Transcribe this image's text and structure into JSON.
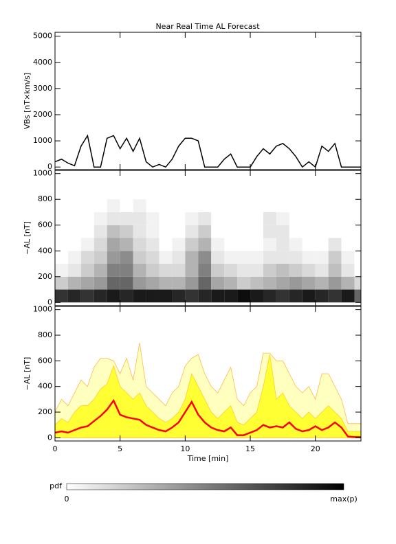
{
  "chart_data": [
    {
      "type": "line",
      "title": "Near Real Time AL Forecast",
      "y_label": "VBs [nT×km/s]",
      "color": "#000000",
      "show_xtick_labels": false,
      "x": [
        0,
        0.5,
        1,
        1.5,
        2,
        2.5,
        3,
        3.5,
        4,
        4.5,
        5,
        5.5,
        6,
        6.5,
        7,
        7.5,
        8,
        8.5,
        9,
        9.5,
        10,
        10.5,
        11,
        11.5,
        12,
        12.5,
        13,
        13.5,
        14,
        14.5,
        15,
        15.5,
        16,
        16.5,
        17,
        17.5,
        18,
        18.5,
        19,
        19.5,
        20,
        20.5,
        21,
        21.5,
        22,
        22.5,
        23,
        23.5
      ],
      "values": [
        200,
        300,
        150,
        50,
        800,
        1200,
        0,
        0,
        1100,
        1200,
        700,
        1100,
        600,
        1100,
        200,
        0,
        100,
        0,
        300,
        800,
        1100,
        1100,
        1000,
        0,
        0,
        0,
        300,
        500,
        0,
        0,
        0,
        400,
        700,
        500,
        800,
        900,
        700,
        400,
        0,
        200,
        0,
        800,
        600,
        900,
        0,
        0,
        0,
        0
      ],
      "xlim": [
        0,
        23.5
      ],
      "xticks": [
        0,
        5,
        10,
        15,
        20
      ],
      "ylim": [
        -100,
        5150
      ],
      "yticks": [
        0,
        1000,
        2000,
        3000,
        4000,
        5000
      ]
    },
    {
      "type": "heatmap",
      "y_label": "−AL [nT]",
      "colors": [
        "#ffffff",
        "#000000"
      ],
      "show_xtick_labels": false,
      "xbins": [
        0,
        1,
        2,
        3,
        4,
        5,
        6,
        7,
        8,
        9,
        10,
        11,
        12,
        13,
        14,
        15,
        16,
        17,
        18,
        19,
        20,
        21,
        22,
        23,
        24
      ],
      "ybins": [
        0,
        100,
        200,
        300,
        400,
        500,
        600,
        700,
        800
      ],
      "z": [
        [
          0.8,
          0.85,
          0.8,
          0.85,
          0.9,
          0.85,
          0.9,
          0.9,
          0.9,
          0.85,
          0.8,
          0.85,
          0.9,
          0.9,
          0.95,
          0.9,
          0.85,
          0.8,
          0.85,
          0.9,
          0.85,
          0.8,
          0.9,
          0.6
        ],
        [
          0.2,
          0.3,
          0.35,
          0.4,
          0.6,
          0.6,
          0.4,
          0.35,
          0.3,
          0.3,
          0.4,
          0.6,
          0.35,
          0.3,
          0.2,
          0.25,
          0.3,
          0.35,
          0.4,
          0.35,
          0.3,
          0.4,
          0.3,
          0.15
        ],
        [
          0.05,
          0.1,
          0.2,
          0.3,
          0.5,
          0.5,
          0.3,
          0.2,
          0.15,
          0.15,
          0.3,
          0.5,
          0.2,
          0.15,
          0.1,
          0.1,
          0.2,
          0.25,
          0.2,
          0.15,
          0.1,
          0.25,
          0.1,
          0
        ],
        [
          0,
          0.05,
          0.15,
          0.2,
          0.4,
          0.45,
          0.2,
          0.15,
          0.05,
          0.1,
          0.3,
          0.45,
          0.1,
          0.05,
          0.05,
          0.05,
          0.1,
          0.1,
          0.1,
          0.05,
          0.05,
          0.2,
          0.05,
          0
        ],
        [
          0,
          0,
          0.05,
          0.15,
          0.35,
          0.3,
          0.15,
          0.1,
          0,
          0.05,
          0.2,
          0.3,
          0.05,
          0,
          0,
          0,
          0.05,
          0.1,
          0.05,
          0,
          0,
          0.1,
          0,
          0
        ],
        [
          0,
          0,
          0,
          0.1,
          0.25,
          0.2,
          0.1,
          0.05,
          0,
          0,
          0.1,
          0.2,
          0,
          0,
          0,
          0,
          0.1,
          0.1,
          0,
          0,
          0,
          0,
          0,
          0
        ],
        [
          0,
          0,
          0,
          0.05,
          0.1,
          0.1,
          0.1,
          0.05,
          0,
          0,
          0.05,
          0.1,
          0,
          0,
          0,
          0,
          0.1,
          0.05,
          0,
          0,
          0,
          0,
          0,
          0
        ],
        [
          0,
          0,
          0,
          0,
          0.05,
          0,
          0.05,
          0,
          0,
          0,
          0,
          0,
          0,
          0,
          0,
          0,
          0,
          0,
          0,
          0,
          0,
          0,
          0,
          0
        ]
      ],
      "xlim": [
        0,
        23.5
      ],
      "xticks": [
        0,
        5,
        10,
        15,
        20
      ],
      "ylim": [
        -25,
        1025
      ],
      "yticks": [
        0,
        200,
        400,
        600,
        800,
        1000
      ]
    },
    {
      "type": "area",
      "y_label": "−AL [nT]",
      "x_label": "Time [min]",
      "show_xtick_labels": true,
      "x": [
        0,
        0.5,
        1,
        1.5,
        2,
        2.5,
        3,
        3.5,
        4,
        4.5,
        5,
        5.5,
        6,
        6.5,
        7,
        7.5,
        8,
        8.5,
        9,
        9.5,
        10,
        10.5,
        11,
        11.5,
        12,
        12.5,
        13,
        13.5,
        14,
        14.5,
        15,
        15.5,
        16,
        16.5,
        17,
        17.5,
        18,
        18.5,
        19,
        19.5,
        20,
        20.5,
        21,
        21.5,
        22,
        22.5,
        23,
        23.5
      ],
      "series": [
        {
          "color": "#ffffc0",
          "edge": "#ffb84d",
          "values": [
            200,
            300,
            250,
            350,
            450,
            400,
            550,
            620,
            620,
            600,
            500,
            620,
            450,
            740,
            400,
            350,
            300,
            250,
            350,
            400,
            560,
            620,
            650,
            500,
            400,
            350,
            450,
            550,
            300,
            250,
            350,
            400,
            660,
            660,
            600,
            600,
            500,
            400,
            350,
            400,
            300,
            500,
            500,
            400,
            300,
            110,
            110,
            110
          ]
        },
        {
          "color": "#ffff33",
          "edge": "#ffcc33",
          "values": [
            100,
            150,
            120,
            200,
            250,
            250,
            300,
            380,
            420,
            560,
            400,
            350,
            300,
            350,
            250,
            200,
            150,
            120,
            150,
            200,
            300,
            500,
            400,
            300,
            200,
            150,
            200,
            250,
            120,
            100,
            150,
            200,
            400,
            650,
            300,
            350,
            250,
            200,
            150,
            200,
            150,
            200,
            250,
            200,
            150,
            50,
            50,
            50
          ]
        },
        {
          "color": "#ff0000",
          "line": true,
          "values": [
            40,
            50,
            40,
            60,
            80,
            90,
            130,
            170,
            220,
            290,
            180,
            160,
            150,
            140,
            100,
            80,
            60,
            50,
            80,
            120,
            200,
            280,
            180,
            120,
            80,
            60,
            50,
            80,
            20,
            20,
            40,
            60,
            100,
            80,
            90,
            80,
            120,
            70,
            50,
            60,
            90,
            60,
            80,
            120,
            80,
            10,
            5,
            5
          ]
        }
      ],
      "xlim": [
        0,
        23.5
      ],
      "xticks": [
        0,
        5,
        10,
        15,
        20
      ],
      "ylim": [
        -25,
        1025
      ],
      "yticks": [
        0,
        200,
        400,
        600,
        800,
        1000
      ]
    }
  ],
  "colorbar": {
    "label": "pdf",
    "min_label": "0",
    "max_label": "max(p)",
    "colors": [
      "#ffffff",
      "#000000"
    ]
  }
}
